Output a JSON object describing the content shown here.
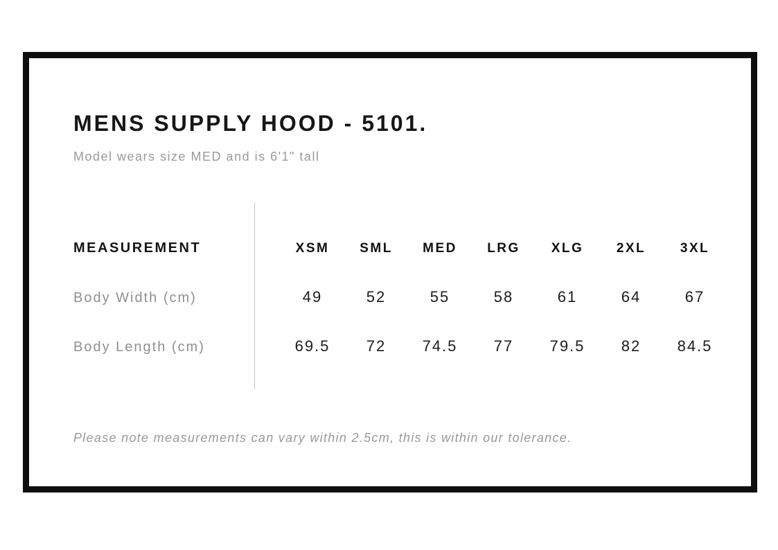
{
  "meta": {
    "background_color": "#ffffff",
    "frame_border_color": "#0e0e0e",
    "divider_color": "#c8c8c8",
    "primary_text_color": "#161616",
    "muted_text_color": "#9a9a9a"
  },
  "header": {
    "title": "MENS SUPPLY HOOD - 5101.",
    "subtitle": "Model wears size MED and is 6'1\" tall"
  },
  "size_chart": {
    "measurement_header": "MEASUREMENT",
    "sizes": [
      "XSM",
      "SML",
      "MED",
      "LRG",
      "XLG",
      "2XL",
      "3XL"
    ],
    "rows": [
      {
        "label": "Body Width (cm)",
        "values": [
          "49",
          "52",
          "55",
          "58",
          "61",
          "64",
          "67"
        ]
      },
      {
        "label": "Body Length (cm)",
        "values": [
          "69.5",
          "72",
          "74.5",
          "77",
          "79.5",
          "82",
          "84.5"
        ]
      }
    ]
  },
  "footer": {
    "tolerance_note": "Please note measurements can vary within 2.5cm, this is within our tolerance."
  },
  "chart_data": {
    "type": "table",
    "title": "MENS SUPPLY HOOD - 5101.",
    "columns": [
      "MEASUREMENT",
      "XSM",
      "SML",
      "MED",
      "LRG",
      "XLG",
      "2XL",
      "3XL"
    ],
    "rows": [
      [
        "Body Width (cm)",
        49,
        52,
        55,
        58,
        61,
        64,
        67
      ],
      [
        "Body Length (cm)",
        69.5,
        72,
        74.5,
        77,
        79.5,
        82,
        84.5
      ]
    ]
  }
}
